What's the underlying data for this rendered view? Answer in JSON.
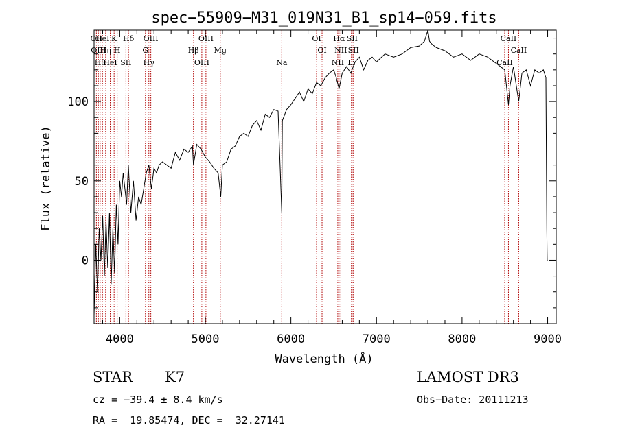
{
  "chart_data": {
    "type": "line",
    "title": "spec−55909−M31_019N31_B1_sp14−059.fits",
    "xlabel": "Wavelength (Å)",
    "ylabel": "Flux (relative)",
    "xlim": [
      3700,
      9100
    ],
    "ylim": [
      -40,
      145
    ],
    "x_ticks": [
      4000,
      5000,
      6000,
      7000,
      8000,
      9000
    ],
    "x_tick_labels": [
      "4000",
      "5000",
      "6000",
      "7000",
      "8000",
      "9000"
    ],
    "y_ticks": [
      0,
      50,
      100
    ],
    "y_tick_labels": [
      "0",
      "50",
      "100"
    ],
    "series": [
      {
        "name": "flux",
        "x": [
          3700,
          3720,
          3740,
          3760,
          3780,
          3800,
          3820,
          3840,
          3860,
          3880,
          3900,
          3920,
          3940,
          3960,
          3980,
          4000,
          4020,
          4040,
          4060,
          4080,
          4100,
          4130,
          4160,
          4190,
          4220,
          4250,
          4280,
          4310,
          4340,
          4370,
          4400,
          4430,
          4460,
          4500,
          4550,
          4600,
          4650,
          4700,
          4750,
          4800,
          4850,
          4861,
          4900,
          4950,
          5000,
          5050,
          5100,
          5150,
          5180,
          5200,
          5250,
          5300,
          5350,
          5400,
          5450,
          5500,
          5550,
          5600,
          5650,
          5700,
          5750,
          5800,
          5850,
          5880,
          5893,
          5900,
          5950,
          6000,
          6050,
          6100,
          6150,
          6200,
          6250,
          6300,
          6350,
          6400,
          6450,
          6500,
          6530,
          6563,
          6600,
          6650,
          6700,
          6750,
          6800,
          6850,
          6900,
          6950,
          7000,
          7100,
          7200,
          7300,
          7400,
          7500,
          7560,
          7600,
          7620,
          7650,
          7700,
          7800,
          7900,
          8000,
          8100,
          8200,
          8300,
          8400,
          8450,
          8498,
          8542,
          8560,
          8600,
          8662,
          8700,
          8750,
          8800,
          8850,
          8900,
          8950,
          8980,
          8990,
          8995,
          9000
        ],
        "values": [
          -35,
          10,
          -20,
          20,
          0,
          28,
          -10,
          25,
          -5,
          30,
          -15,
          20,
          -8,
          35,
          10,
          50,
          40,
          55,
          45,
          35,
          60,
          30,
          50,
          25,
          40,
          35,
          45,
          55,
          60,
          45,
          58,
          55,
          60,
          62,
          60,
          58,
          68,
          63,
          70,
          68,
          72,
          60,
          73,
          70,
          65,
          62,
          58,
          55,
          40,
          60,
          62,
          70,
          72,
          78,
          80,
          78,
          85,
          88,
          82,
          92,
          90,
          95,
          94,
          50,
          30,
          88,
          95,
          98,
          102,
          106,
          100,
          108,
          105,
          112,
          110,
          115,
          118,
          120,
          115,
          108,
          118,
          122,
          118,
          125,
          128,
          120,
          126,
          128,
          125,
          130,
          128,
          130,
          134,
          135,
          138,
          145,
          138,
          136,
          134,
          132,
          128,
          130,
          126,
          130,
          128,
          124,
          122,
          120,
          98,
          110,
          122,
          100,
          118,
          120,
          110,
          120,
          118,
          120,
          115,
          20,
          0,
          0
        ]
      }
    ],
    "line_labels": [
      {
        "wavelength": 3727,
        "text": "OII"
      },
      {
        "wavelength": 3750,
        "text": "OIII"
      },
      {
        "wavelength": 3771,
        "text": "Hθ"
      },
      {
        "wavelength": 3798,
        "text": "HeI"
      },
      {
        "wavelength": 3835,
        "text": "Hη"
      },
      {
        "wavelength": 3889,
        "text": "HeI"
      },
      {
        "wavelength": 3934,
        "text": "K"
      },
      {
        "wavelength": 3970,
        "text": "H"
      },
      {
        "wavelength": 4072,
        "text": "SII"
      },
      {
        "wavelength": 4102,
        "text": "Hδ"
      },
      {
        "wavelength": 4300,
        "text": "G"
      },
      {
        "wavelength": 4340,
        "text": "Hγ"
      },
      {
        "wavelength": 4363,
        "text": "OIII"
      },
      {
        "wavelength": 4861,
        "text": "Hβ"
      },
      {
        "wavelength": 4959,
        "text": "OIII"
      },
      {
        "wavelength": 5007,
        "text": "OIII"
      },
      {
        "wavelength": 5175,
        "text": "Mg"
      },
      {
        "wavelength": 5893,
        "text": "Na"
      },
      {
        "wavelength": 6300,
        "text": "OI"
      },
      {
        "wavelength": 6364,
        "text": "OI"
      },
      {
        "wavelength": 6548,
        "text": "NII"
      },
      {
        "wavelength": 6563,
        "text": "Hα"
      },
      {
        "wavelength": 6583,
        "text": "NII"
      },
      {
        "wavelength": 6707,
        "text": "Li"
      },
      {
        "wavelength": 6716,
        "text": "SII"
      },
      {
        "wavelength": 6731,
        "text": "SII"
      },
      {
        "wavelength": 8498,
        "text": "CaII"
      },
      {
        "wavelength": 8542,
        "text": "CaII"
      },
      {
        "wavelength": 8662,
        "text": "CaII"
      }
    ]
  },
  "info": {
    "object_type": "STAR",
    "subclass": "K7",
    "survey": "LAMOST DR3",
    "cz": "cz = −39.4 ± 8.4 km/s",
    "obs_date": "Obs−Date: 20111213",
    "coords": "RA =  19.85474, DEC =  32.27141"
  }
}
